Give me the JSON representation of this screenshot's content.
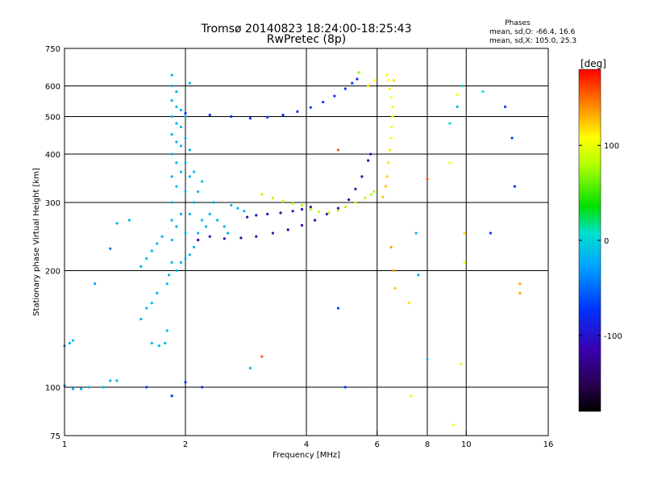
{
  "chart_data": {
    "type": "scatter",
    "title": "Tromsø 20140823 18:24:00-18:25:43",
    "subtitle": "RwPretec (8p)",
    "xlabel": "Frequency [MHz]",
    "ylabel": "Stationary phase Virtual Height [km]",
    "x_scale": "log",
    "y_scale": "log",
    "xlim": [
      1,
      16
    ],
    "ylim": [
      75,
      750
    ],
    "x_ticks": [
      1,
      2,
      4,
      6,
      8,
      10,
      16
    ],
    "y_ticks": [
      75,
      100,
      200,
      300,
      400,
      500,
      600,
      750
    ],
    "x_gridlines": [
      2,
      4,
      6,
      8,
      10
    ],
    "y_gridlines": [
      100,
      200,
      300,
      400,
      500,
      600
    ],
    "grid": true,
    "phase_stats": {
      "heading": "Phases",
      "line_o": "mean, sd,O: -66.4, 16.6",
      "line_x": "mean, sd,X: 105.0, 25.3"
    },
    "colorbar": {
      "label": "[deg]",
      "range": [
        -180,
        180
      ],
      "ticks": [
        100,
        0,
        -100
      ],
      "tick_labels": [
        "100",
        "0",
        "-100"
      ]
    },
    "series": [
      {
        "points": [
          [
            1.0,
            128,
            -60
          ],
          [
            1.03,
            130,
            -60
          ],
          [
            1.05,
            132,
            -58
          ],
          [
            1.0,
            101,
            -60
          ],
          [
            1.05,
            99,
            -62
          ],
          [
            1.1,
            99,
            -60
          ],
          [
            1.15,
            100,
            -58
          ],
          [
            1.25,
            100,
            -60
          ],
          [
            1.3,
            104,
            -62
          ],
          [
            1.35,
            104,
            -60
          ],
          [
            1.19,
            185,
            -70
          ],
          [
            1.3,
            228,
            -80
          ],
          [
            1.35,
            265,
            -65
          ],
          [
            1.45,
            270,
            -60
          ],
          [
            1.55,
            150,
            -60
          ],
          [
            1.6,
            160,
            -62
          ],
          [
            1.65,
            165,
            -58
          ],
          [
            1.7,
            175,
            -60
          ],
          [
            1.55,
            205,
            -65
          ],
          [
            1.6,
            215,
            -60
          ],
          [
            1.65,
            225,
            -62
          ],
          [
            1.7,
            235,
            -58
          ],
          [
            1.75,
            245,
            -60
          ],
          [
            1.65,
            130,
            -60
          ],
          [
            1.72,
            128,
            -58
          ],
          [
            1.78,
            130,
            -62
          ],
          [
            1.8,
            140,
            -60
          ],
          [
            1.8,
            185,
            -60
          ],
          [
            1.82,
            195,
            -62
          ],
          [
            1.85,
            210,
            -58
          ],
          [
            1.85,
            240,
            -60
          ],
          [
            1.85,
            270,
            -62
          ],
          [
            1.85,
            300,
            -60
          ],
          [
            1.85,
            350,
            -58
          ],
          [
            1.85,
            400,
            -60
          ],
          [
            1.85,
            450,
            -62
          ],
          [
            1.85,
            500,
            -60
          ],
          [
            1.85,
            550,
            -58
          ],
          [
            1.85,
            600,
            -60
          ],
          [
            1.85,
            640,
            -62
          ],
          [
            1.9,
            200,
            -60
          ],
          [
            1.9,
            260,
            -62
          ],
          [
            1.9,
            330,
            -58
          ],
          [
            1.9,
            380,
            -60
          ],
          [
            1.9,
            430,
            -60
          ],
          [
            1.9,
            480,
            -62
          ],
          [
            1.9,
            530,
            -58
          ],
          [
            1.9,
            580,
            -60
          ],
          [
            1.95,
            210,
            -60
          ],
          [
            1.95,
            280,
            -62
          ],
          [
            1.95,
            360,
            -58
          ],
          [
            1.95,
            420,
            -60
          ],
          [
            1.95,
            470,
            -60
          ],
          [
            1.95,
            520,
            -62
          ],
          [
            2.0,
            215,
            -60
          ],
          [
            2.0,
            250,
            -62
          ],
          [
            2.0,
            320,
            -58
          ],
          [
            2.0,
            380,
            -60
          ],
          [
            2.0,
            440,
            -60
          ],
          [
            2.0,
            500,
            -62
          ],
          [
            2.05,
            220,
            -60
          ],
          [
            2.05,
            280,
            -62
          ],
          [
            2.05,
            350,
            -58
          ],
          [
            2.05,
            410,
            -60
          ],
          [
            2.05,
            610,
            -60
          ],
          [
            2.1,
            230,
            -60
          ],
          [
            2.1,
            300,
            -62
          ],
          [
            2.1,
            360,
            -58
          ],
          [
            2.15,
            250,
            -60
          ],
          [
            2.15,
            320,
            -60
          ],
          [
            2.2,
            270,
            -62
          ],
          [
            2.2,
            340,
            -58
          ],
          [
            2.25,
            260,
            -60
          ],
          [
            2.3,
            280,
            -60
          ],
          [
            2.35,
            300,
            -62
          ],
          [
            2.4,
            270,
            -58
          ],
          [
            2.5,
            260,
            -60
          ],
          [
            2.55,
            250,
            -62
          ],
          [
            2.6,
            295,
            -60
          ],
          [
            2.7,
            290,
            -60
          ],
          [
            2.8,
            285,
            -62
          ],
          [
            2.15,
            240,
            -120
          ],
          [
            2.3,
            245,
            -118
          ],
          [
            2.5,
            242,
            -120
          ],
          [
            2.75,
            243,
            -122
          ],
          [
            3.0,
            245,
            -120
          ],
          [
            3.3,
            250,
            -118
          ],
          [
            3.6,
            255,
            -120
          ],
          [
            3.9,
            262,
            -122
          ],
          [
            4.2,
            270,
            -120
          ],
          [
            4.5,
            280,
            -118
          ],
          [
            4.8,
            290,
            -120
          ],
          [
            5.1,
            305,
            -122
          ],
          [
            5.3,
            325,
            -120
          ],
          [
            5.5,
            350,
            -118
          ],
          [
            5.7,
            385,
            -120
          ],
          [
            5.78,
            400,
            -122
          ],
          [
            2.85,
            275,
            -120
          ],
          [
            3.0,
            278,
            -118
          ],
          [
            3.2,
            280,
            -120
          ],
          [
            3.45,
            282,
            -122
          ],
          [
            3.7,
            285,
            -120
          ],
          [
            3.9,
            288,
            -118
          ],
          [
            4.1,
            292,
            -120
          ],
          [
            3.1,
            315,
            60
          ],
          [
            3.3,
            308,
            62
          ],
          [
            3.5,
            302,
            58
          ],
          [
            3.7,
            298,
            60
          ],
          [
            3.9,
            295,
            62
          ],
          [
            4.1,
            288,
            58
          ],
          [
            4.3,
            284,
            60
          ],
          [
            4.55,
            282,
            60
          ],
          [
            4.8,
            286,
            62
          ],
          [
            5.0,
            292,
            58
          ],
          [
            5.3,
            300,
            60
          ],
          [
            5.6,
            308,
            60
          ],
          [
            5.8,
            315,
            62
          ],
          [
            5.9,
            320,
            58
          ],
          [
            2.0,
            510,
            -100
          ],
          [
            2.3,
            505,
            -100
          ],
          [
            2.6,
            500,
            -102
          ],
          [
            2.9,
            495,
            -98
          ],
          [
            3.2,
            498,
            -100
          ],
          [
            3.5,
            505,
            -102
          ],
          [
            3.8,
            515,
            -100
          ],
          [
            4.1,
            528,
            -98
          ],
          [
            4.4,
            545,
            -100
          ],
          [
            4.7,
            565,
            -102
          ],
          [
            5.0,
            590,
            -100
          ],
          [
            5.2,
            610,
            -98
          ],
          [
            5.35,
            625,
            -100
          ],
          [
            6.2,
            310,
            120
          ],
          [
            6.3,
            330,
            118
          ],
          [
            6.35,
            350,
            115
          ],
          [
            6.4,
            380,
            110
          ],
          [
            6.45,
            410,
            105
          ],
          [
            6.5,
            440,
            100
          ],
          [
            6.52,
            470,
            95
          ],
          [
            6.55,
            500,
            90
          ],
          [
            6.55,
            530,
            95
          ],
          [
            6.5,
            560,
            100
          ],
          [
            6.45,
            590,
            105
          ],
          [
            6.4,
            620,
            100
          ],
          [
            6.35,
            640,
            98
          ],
          [
            5.4,
            650,
            50
          ],
          [
            5.7,
            600,
            105
          ],
          [
            5.9,
            620,
            100
          ],
          [
            6.6,
            620,
            110
          ],
          [
            7.5,
            250,
            -60
          ],
          [
            7.6,
            195,
            -60
          ],
          [
            8.0,
            345,
            150
          ],
          [
            9.1,
            380,
            100
          ],
          [
            9.1,
            480,
            -40
          ],
          [
            9.5,
            530,
            -60
          ],
          [
            9.5,
            570,
            100
          ],
          [
            9.8,
            600,
            -40
          ],
          [
            9.9,
            250,
            110
          ],
          [
            9.9,
            210,
            100
          ],
          [
            11.0,
            580,
            -40
          ],
          [
            11.5,
            250,
            -100
          ],
          [
            12.5,
            530,
            -100
          ],
          [
            13.0,
            440,
            -100
          ],
          [
            13.2,
            330,
            -100
          ],
          [
            13.6,
            175,
            130
          ],
          [
            13.6,
            185,
            130
          ],
          [
            6.5,
            230,
            130
          ],
          [
            6.6,
            200,
            130
          ],
          [
            6.65,
            180,
            120
          ],
          [
            7.3,
            95,
            100
          ],
          [
            7.2,
            165,
            110
          ],
          [
            8.0,
            118,
            -60
          ],
          [
            9.3,
            80,
            100
          ],
          [
            9.7,
            115,
            90
          ],
          [
            4.8,
            160,
            -100
          ],
          [
            4.8,
            410,
            150
          ],
          [
            5.0,
            100,
            -100
          ],
          [
            3.1,
            120,
            150
          ],
          [
            2.9,
            112,
            -60
          ],
          [
            1.85,
            95,
            -100
          ],
          [
            2.2,
            100,
            -100
          ],
          [
            2.0,
            103,
            -100
          ],
          [
            1.6,
            100,
            -100
          ]
        ]
      }
    ]
  }
}
